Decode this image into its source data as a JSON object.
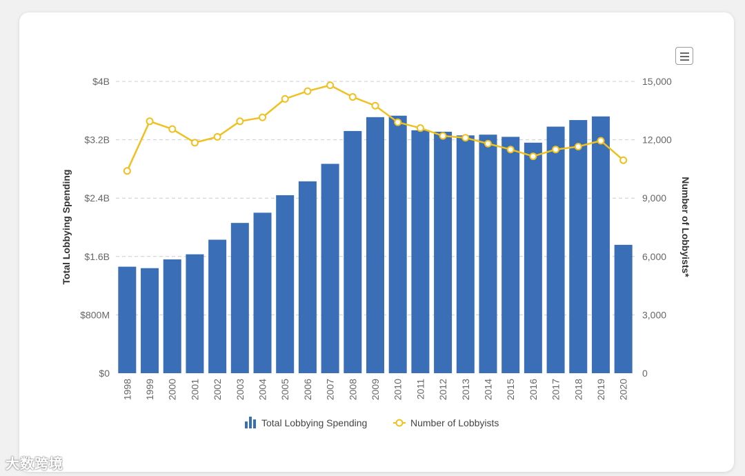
{
  "colors": {
    "bar": "#3a6eb6",
    "line": "#f0c020",
    "marker_fill": "#ffffff",
    "grid": "#cccccc"
  },
  "menu_icon": "hamburger-menu-icon",
  "watermark": "大数跨境",
  "chart_data": {
    "type": "bar-line-combo",
    "categories": [
      "1998",
      "1999",
      "2000",
      "2001",
      "2002",
      "2003",
      "2004",
      "2005",
      "2006",
      "2007",
      "2008",
      "2009",
      "2010",
      "2011",
      "2012",
      "2013",
      "2014",
      "2015",
      "2016",
      "2017",
      "2018",
      "2019",
      "2020"
    ],
    "series": [
      {
        "name": "Total Lobbying Spending",
        "type": "bar",
        "axis": "left",
        "values": [
          1.46,
          1.44,
          1.56,
          1.63,
          1.83,
          2.06,
          2.2,
          2.44,
          2.63,
          2.87,
          3.32,
          3.51,
          3.53,
          3.33,
          3.31,
          3.26,
          3.27,
          3.24,
          3.16,
          3.38,
          3.47,
          3.52,
          1.76
        ]
      },
      {
        "name": "Number of Lobbyists",
        "type": "line",
        "axis": "right",
        "values": [
          10400,
          12950,
          12550,
          11850,
          12150,
          12950,
          13150,
          14100,
          14500,
          14800,
          14200,
          13750,
          12900,
          12600,
          12200,
          12100,
          11800,
          11500,
          11150,
          11500,
          11650,
          11950,
          10950
        ]
      }
    ],
    "left_axis": {
      "title": "Total Lobbying Spending",
      "min": 0,
      "max": 4,
      "unit": "$B",
      "tick_labels": [
        "$0",
        "$800M",
        "$1.6B",
        "$2.4B",
        "$3.2B",
        "$4B"
      ]
    },
    "right_axis": {
      "title": "Number of Lobbyists*",
      "min": 0,
      "max": 15000,
      "tick_labels": [
        "0",
        "3,000",
        "6,000",
        "9,000",
        "12,000",
        "15,000"
      ]
    },
    "legend": [
      "Total Lobbying Spending",
      "Number of Lobbyists"
    ],
    "legend_position": "bottom-center",
    "grid": true
  }
}
